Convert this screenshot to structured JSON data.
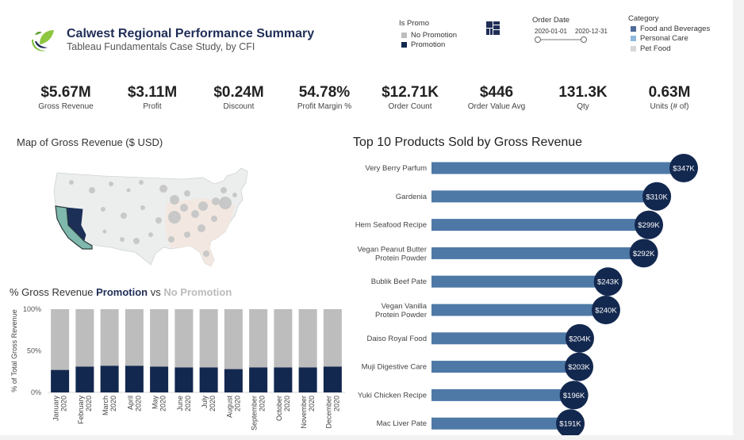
{
  "header": {
    "title": "Calwest Regional Performance Summary",
    "subtitle": "Tableau Fundamentals Case Study, by CFI"
  },
  "promo_legend": {
    "title": "Is Promo",
    "items": [
      {
        "label": "No Promotion",
        "color": "#bdbdbd"
      },
      {
        "label": "Promotion",
        "color": "#13284f"
      }
    ]
  },
  "date_filter": {
    "title": "Order Date",
    "start": "2020-01-01",
    "end": "2020-12-31"
  },
  "category_legend": {
    "title": "Category",
    "items": [
      {
        "label": "Food and Beverages",
        "color": "#4e6a98"
      },
      {
        "label": "Personal Care",
        "color": "#8fb8de"
      },
      {
        "label": "Pet Food",
        "color": "#d7d7d7"
      }
    ]
  },
  "kpis": [
    {
      "value": "$5.67M",
      "label": "Gross Revenue"
    },
    {
      "value": "$3.11M",
      "label": "Profit"
    },
    {
      "value": "$0.24M",
      "label": "Discount"
    },
    {
      "value": "54.78%",
      "label": "Profit Margin %"
    },
    {
      "value": "$12.71K",
      "label": "Order Count"
    },
    {
      "value": "$446",
      "label": "Order Value Avg"
    },
    {
      "value": "131.3K",
      "label": "Qty"
    },
    {
      "value": "0.63M",
      "label": "Units (# of)"
    }
  ],
  "map": {
    "title": "Map of Gross Revenue ($ USD)"
  },
  "promo_chart_title": {
    "prefix": "% Gross Revenue ",
    "promo": "Promotion",
    "mid": " vs ",
    "nopromo": "No Promotion"
  },
  "chart_data": [
    {
      "type": "bar",
      "stacked": true,
      "categories": [
        "January 2020",
        "February 2020",
        "March 2020",
        "April 2020",
        "May 2020",
        "June 2020",
        "July 2020",
        "August 2020",
        "September 2020",
        "October 2020",
        "November 2020",
        "December 2020"
      ],
      "series": [
        {
          "name": "Promotion",
          "values": [
            27,
            31,
            32,
            32,
            31,
            30,
            30,
            28,
            30,
            30,
            30,
            31
          ],
          "color": "#13284f"
        },
        {
          "name": "No Promotion",
          "values": [
            73,
            69,
            68,
            68,
            69,
            70,
            70,
            72,
            70,
            70,
            70,
            69
          ],
          "color": "#bdbdbd"
        }
      ],
      "ylabel": "% of Total Gross Revenue",
      "yticks": [
        "0%",
        "50%",
        "100%"
      ],
      "ylim": [
        0,
        100
      ]
    },
    {
      "type": "bar",
      "orientation": "horizontal",
      "title": "Top 10 Products Sold by Gross Revenue",
      "categories": [
        "Very Berry Parfum",
        "Gardenia",
        "Hem Seafood Recipe",
        "Vegan Peanut Butter Protein Powder",
        "Bublik Beef Pate",
        "Vegan Vanilla Protein Powder",
        "Daiso Royal Food",
        "Muji Digestive Care",
        "Yuki Chicken Recipe",
        "Mac Liver Pate"
      ],
      "values": [
        347,
        310,
        299,
        292,
        243,
        240,
        204,
        203,
        196,
        191
      ],
      "labels": [
        "$347K",
        "$310K",
        "$299K",
        "$292K",
        "$243K",
        "$240K",
        "$204K",
        "$203K",
        "$196K",
        "$191K"
      ],
      "units": "K USD",
      "bar_color": "#4e79a7",
      "label_color": "#13284f"
    }
  ]
}
